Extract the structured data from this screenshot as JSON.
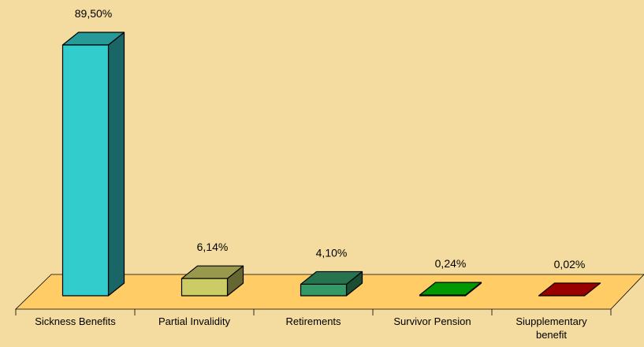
{
  "chart_data": {
    "type": "bar3d",
    "categories": [
      "Sickness Benefits",
      "Partial Invalidity",
      "Retirements",
      "Survivor Pension",
      "Siupplementary benefit"
    ],
    "values": [
      89.5,
      6.14,
      4.1,
      0.24,
      0.02
    ],
    "value_labels": [
      "89,50%",
      "6,14%",
      "4,10%",
      "0,24%",
      "0,02%"
    ],
    "colors": [
      "#33CCCC",
      "#CCCC66",
      "#339966",
      "#00CC00",
      "#CC0000"
    ]
  }
}
